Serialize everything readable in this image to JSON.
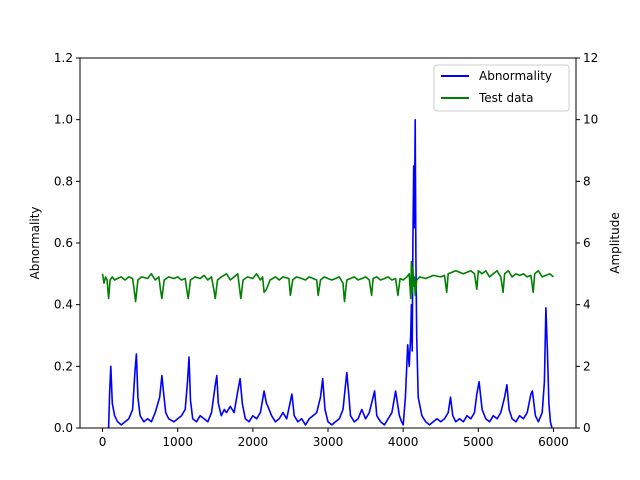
{
  "chart_data": {
    "type": "line",
    "title": "",
    "xlabel": "",
    "x_ticks": [
      0,
      1000,
      2000,
      3000,
      4000,
      5000,
      6000
    ],
    "xlim": [
      -300,
      6300
    ],
    "left_axis": {
      "label": "Abnormality",
      "ylim": [
        0,
        1.2
      ],
      "ticks": [
        "0.0",
        "0.2",
        "0.4",
        "0.6",
        "0.8",
        "1.0",
        "1.2"
      ]
    },
    "right_axis": {
      "label": "Amplitude",
      "ylim": [
        0,
        12
      ],
      "ticks": [
        "0",
        "2",
        "4",
        "6",
        "8",
        "10",
        "12"
      ]
    },
    "legend": {
      "placement": "top-right"
    },
    "series": [
      {
        "name": "Abnormality",
        "axis": "left",
        "color": "#0000ff",
        "x": [
          80,
          95,
          110,
          130,
          160,
          200,
          250,
          300,
          350,
          400,
          430,
          450,
          470,
          500,
          550,
          600,
          650,
          700,
          760,
          790,
          810,
          840,
          880,
          950,
          1000,
          1050,
          1100,
          1130,
          1150,
          1170,
          1200,
          1250,
          1300,
          1350,
          1400,
          1450,
          1500,
          1520,
          1540,
          1580,
          1620,
          1650,
          1700,
          1750,
          1800,
          1830,
          1860,
          1900,
          1950,
          2000,
          2050,
          2100,
          2150,
          2180,
          2200,
          2250,
          2300,
          2350,
          2400,
          2450,
          2520,
          2550,
          2600,
          2650,
          2700,
          2750,
          2800,
          2850,
          2900,
          2930,
          2960,
          3000,
          3050,
          3100,
          3150,
          3200,
          3250,
          3280,
          3300,
          3350,
          3400,
          3450,
          3500,
          3550,
          3620,
          3650,
          3700,
          3750,
          3800,
          3850,
          3900,
          3950,
          3980,
          4000,
          4030,
          4060,
          4080,
          4100,
          4110,
          4120,
          4130,
          4140,
          4150,
          4160,
          4170,
          4180,
          4200,
          4250,
          4300,
          4350,
          4400,
          4450,
          4500,
          4550,
          4600,
          4630,
          4660,
          4700,
          4750,
          4800,
          4850,
          4900,
          4950,
          4980,
          5010,
          5050,
          5100,
          5150,
          5200,
          5250,
          5300,
          5350,
          5380,
          5410,
          5450,
          5500,
          5550,
          5600,
          5650,
          5700,
          5720,
          5740,
          5760,
          5800,
          5850,
          5880,
          5900,
          5920,
          5940,
          5960,
          5980
        ],
        "y": [
          0.0,
          0.12,
          0.2,
          0.08,
          0.04,
          0.02,
          0.01,
          0.02,
          0.03,
          0.06,
          0.18,
          0.24,
          0.1,
          0.04,
          0.02,
          0.03,
          0.02,
          0.05,
          0.1,
          0.17,
          0.12,
          0.05,
          0.03,
          0.02,
          0.03,
          0.04,
          0.06,
          0.15,
          0.23,
          0.09,
          0.03,
          0.02,
          0.04,
          0.03,
          0.02,
          0.05,
          0.14,
          0.17,
          0.08,
          0.04,
          0.06,
          0.05,
          0.07,
          0.05,
          0.12,
          0.16,
          0.08,
          0.03,
          0.02,
          0.04,
          0.03,
          0.05,
          0.12,
          0.08,
          0.07,
          0.04,
          0.02,
          0.03,
          0.05,
          0.03,
          0.11,
          0.04,
          0.02,
          0.03,
          0.01,
          0.03,
          0.04,
          0.05,
          0.1,
          0.16,
          0.06,
          0.02,
          0.01,
          0.02,
          0.03,
          0.06,
          0.18,
          0.1,
          0.04,
          0.02,
          0.03,
          0.06,
          0.03,
          0.05,
          0.12,
          0.04,
          0.02,
          0.01,
          0.03,
          0.05,
          0.12,
          0.04,
          0.02,
          0.01,
          0.1,
          0.27,
          0.2,
          0.3,
          0.4,
          0.25,
          0.6,
          0.85,
          0.65,
          1.0,
          0.55,
          0.3,
          0.1,
          0.04,
          0.02,
          0.01,
          0.02,
          0.03,
          0.02,
          0.03,
          0.05,
          0.1,
          0.04,
          0.02,
          0.03,
          0.02,
          0.04,
          0.03,
          0.05,
          0.11,
          0.15,
          0.06,
          0.03,
          0.02,
          0.04,
          0.03,
          0.05,
          0.1,
          0.14,
          0.06,
          0.03,
          0.02,
          0.04,
          0.03,
          0.05,
          0.11,
          0.12,
          0.08,
          0.04,
          0.02,
          0.05,
          0.15,
          0.39,
          0.25,
          0.08,
          0.02,
          0.0
        ]
      },
      {
        "name": "Test data",
        "axis": "right",
        "color": "#008000",
        "x": [
          0,
          20,
          40,
          60,
          80,
          100,
          130,
          160,
          200,
          250,
          300,
          350,
          400,
          420,
          440,
          470,
          520,
          600,
          650,
          700,
          750,
          770,
          790,
          820,
          880,
          950,
          1000,
          1050,
          1100,
          1120,
          1140,
          1170,
          1230,
          1300,
          1350,
          1400,
          1450,
          1480,
          1500,
          1530,
          1580,
          1650,
          1700,
          1750,
          1800,
          1820,
          1840,
          1870,
          1930,
          2000,
          2050,
          2100,
          2130,
          2150,
          2180,
          2230,
          2300,
          2350,
          2400,
          2480,
          2500,
          2530,
          2580,
          2650,
          2700,
          2750,
          2800,
          2850,
          2870,
          2900,
          2950,
          3000,
          3050,
          3100,
          3150,
          3200,
          3220,
          3250,
          3300,
          3350,
          3400,
          3450,
          3500,
          3550,
          3580,
          3600,
          3650,
          3700,
          3750,
          3800,
          3850,
          3900,
          3930,
          3960,
          4000,
          4050,
          4080,
          4100,
          4110,
          4120,
          4130,
          4140,
          4150,
          4160,
          4180,
          4220,
          4300,
          4400,
          4500,
          4550,
          4580,
          4600,
          4650,
          4700,
          4800,
          4900,
          4950,
          4980,
          5000,
          5050,
          5100,
          5150,
          5200,
          5250,
          5300,
          5330,
          5350,
          5400,
          5450,
          5500,
          5550,
          5600,
          5650,
          5700,
          5730,
          5750,
          5800,
          5850,
          5900,
          5950,
          6000
        ],
        "y": [
          5.0,
          4.7,
          4.9,
          4.8,
          4.2,
          4.8,
          4.9,
          4.8,
          4.85,
          4.9,
          4.8,
          4.9,
          4.85,
          4.5,
          4.1,
          4.8,
          4.9,
          4.85,
          5.0,
          4.8,
          4.9,
          4.5,
          4.2,
          4.8,
          4.9,
          4.85,
          4.9,
          4.8,
          4.85,
          4.5,
          4.2,
          4.8,
          4.9,
          4.85,
          4.95,
          4.8,
          4.9,
          4.5,
          4.2,
          4.8,
          4.9,
          5.0,
          4.8,
          4.9,
          5.0,
          4.6,
          4.2,
          4.8,
          4.9,
          4.85,
          5.0,
          4.8,
          4.9,
          4.4,
          4.5,
          4.8,
          4.9,
          4.8,
          4.9,
          4.85,
          4.3,
          4.8,
          4.9,
          4.85,
          4.8,
          4.9,
          4.85,
          4.8,
          4.3,
          4.8,
          4.9,
          4.85,
          4.8,
          4.85,
          4.9,
          4.7,
          4.1,
          4.8,
          4.85,
          4.9,
          4.8,
          4.85,
          4.9,
          4.8,
          4.3,
          4.85,
          4.9,
          4.8,
          4.85,
          4.9,
          4.8,
          4.85,
          4.3,
          4.85,
          4.8,
          4.9,
          5.0,
          4.2,
          5.4,
          4.4,
          5.2,
          4.6,
          4.9,
          4.3,
          4.8,
          4.9,
          4.85,
          4.95,
          4.9,
          4.95,
          4.4,
          5.0,
          5.05,
          5.1,
          5.0,
          5.1,
          5.0,
          4.5,
          5.1,
          5.0,
          5.1,
          4.9,
          5.0,
          5.1,
          4.9,
          4.4,
          5.0,
          5.1,
          4.9,
          5.0,
          4.95,
          5.0,
          4.9,
          4.95,
          4.4,
          5.0,
          5.1,
          4.9,
          4.95,
          5.0,
          4.9
        ]
      }
    ]
  }
}
